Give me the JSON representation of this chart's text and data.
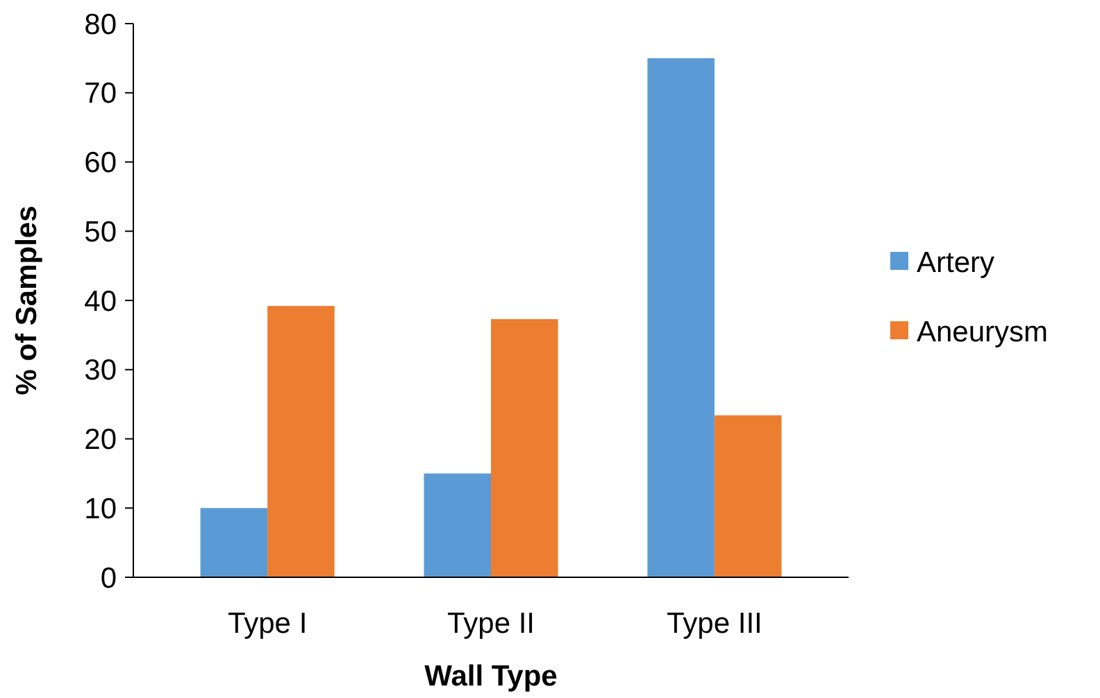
{
  "chart_data": {
    "type": "bar",
    "xlabel": "Wall Type",
    "ylabel": "% of Samples",
    "categories": [
      "Type I",
      "Type II",
      "Type III"
    ],
    "series": [
      {
        "name": "Artery",
        "color": "#5b9bd5",
        "values": [
          10,
          15,
          75
        ]
      },
      {
        "name": "Aneurysm",
        "color": "#ed7d31",
        "values": [
          39.2,
          37.3,
          23.4
        ]
      }
    ],
    "ylim": [
      0,
      80
    ],
    "yticks": [
      0,
      10,
      20,
      30,
      40,
      50,
      60,
      70,
      80
    ],
    "legend": "right",
    "grid": false
  }
}
